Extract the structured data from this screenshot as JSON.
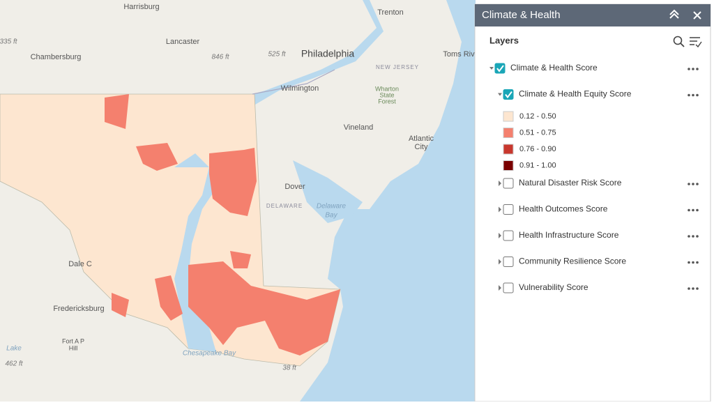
{
  "map": {
    "labels": [
      "Harrisburg",
      "Trenton",
      "335 ft",
      "Chambersburg",
      "Lancaster",
      "846 ft",
      "525 ft",
      "Philadelphia",
      "Toms Riv",
      "NEW JERSEY",
      "Wilmington",
      "Wharton",
      "State",
      "Forest",
      "Vineland",
      "Atlantic",
      "City",
      "Dover",
      "DELAWARE",
      "Delaware",
      "Bay",
      "Dale C",
      "Fredericksburg",
      "Fort A P",
      "Hill",
      "Lake",
      "462 ft",
      "Chesapeake Bay",
      "38 ft"
    ]
  },
  "panel": {
    "title": "Climate & Health",
    "section": "Layers",
    "layers": [
      {
        "name": "Climate & Health Score",
        "checked": true,
        "expanded": true,
        "sublayers": [
          {
            "name": "Climate & Health Equity Score",
            "checked": true,
            "expanded": true,
            "legend": [
              {
                "label": "0.12 - 0.50",
                "color": "#fde6d0"
              },
              {
                "label": "0.51 - 0.75",
                "color": "#f4806e"
              },
              {
                "label": "0.76 - 0.90",
                "color": "#c8372d"
              },
              {
                "label": "0.91 - 1.00",
                "color": "#7a0000"
              }
            ]
          },
          {
            "name": "Natural Disaster Risk Score",
            "checked": false,
            "expanded": false
          },
          {
            "name": "Health Outcomes Score",
            "checked": false,
            "expanded": false
          },
          {
            "name": "Health Infrastructure Score",
            "checked": false,
            "expanded": false
          },
          {
            "name": "Community Resilience Score",
            "checked": false,
            "expanded": false
          },
          {
            "name": "Vulnerability Score",
            "checked": false,
            "expanded": false
          }
        ]
      }
    ]
  }
}
